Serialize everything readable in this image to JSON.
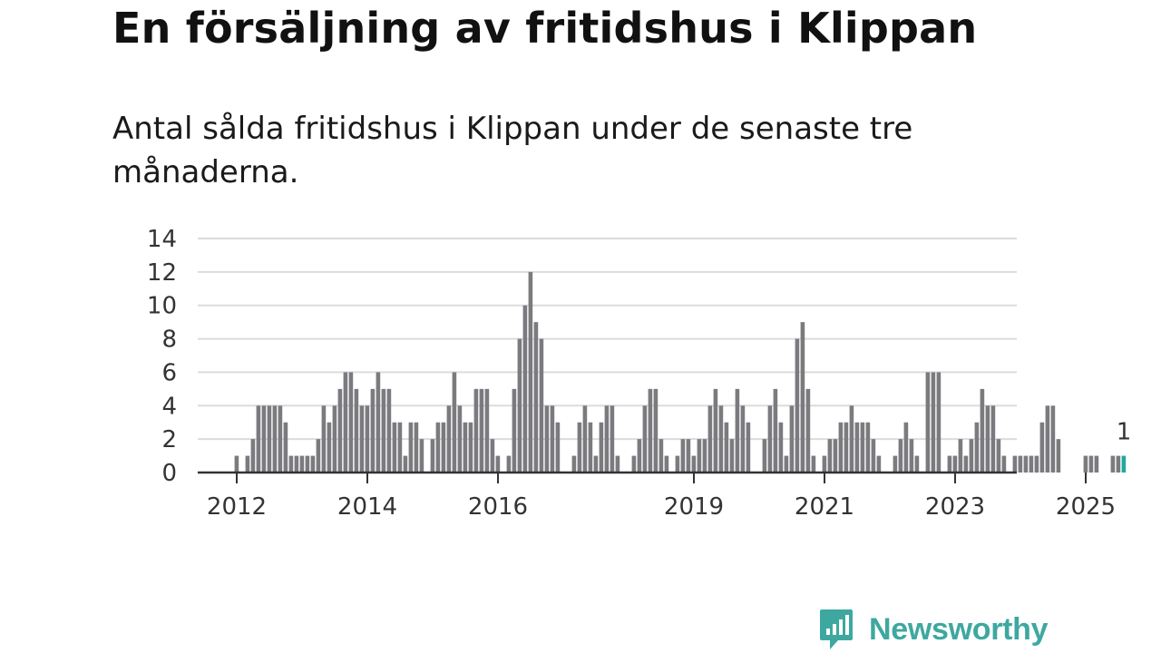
{
  "header": {
    "title": "En försäljning av fritidshus i Klippan",
    "subtitle": "Antal sålda fritidshus i Klippan under de senaste tre månaderna."
  },
  "chart_data": {
    "type": "bar",
    "title": "En försäljning av fritidshus i Klippan",
    "subtitle": "Antal sålda fritidshus i Klippan under de senaste tre månaderna.",
    "xlabel": "",
    "ylabel": "",
    "ylim": [
      0,
      14
    ],
    "yticks": [
      0,
      2,
      4,
      6,
      8,
      10,
      12,
      14
    ],
    "grid": true,
    "start_month": "2011-11",
    "x_tick_labels": [
      {
        "label": "2012",
        "month_index": 1
      },
      {
        "label": "2014",
        "month_index": 25
      },
      {
        "label": "2016",
        "month_index": 49
      },
      {
        "label": "2019",
        "month_index": 85
      },
      {
        "label": "2021",
        "month_index": 109
      },
      {
        "label": "2023",
        "month_index": 133
      },
      {
        "label": "2025",
        "month_index": 157
      }
    ],
    "values": [
      0,
      1,
      0,
      1,
      2,
      4,
      4,
      4,
      4,
      4,
      3,
      1,
      1,
      1,
      1,
      1,
      2,
      4,
      3,
      4,
      5,
      6,
      6,
      5,
      4,
      4,
      5,
      6,
      5,
      5,
      3,
      3,
      1,
      3,
      3,
      2,
      0,
      2,
      3,
      3,
      4,
      6,
      4,
      3,
      3,
      5,
      5,
      5,
      2,
      1,
      0,
      1,
      5,
      8,
      10,
      12,
      9,
      8,
      4,
      4,
      3,
      0,
      0,
      1,
      3,
      4,
      3,
      1,
      3,
      4,
      4,
      1,
      0,
      0,
      1,
      2,
      4,
      5,
      5,
      2,
      1,
      0,
      1,
      2,
      2,
      1,
      2,
      2,
      4,
      5,
      4,
      3,
      2,
      5,
      4,
      3,
      0,
      0,
      2,
      4,
      5,
      3,
      1,
      4,
      8,
      9,
      5,
      1,
      0,
      1,
      2,
      2,
      3,
      3,
      4,
      3,
      3,
      3,
      2,
      1,
      0,
      0,
      1,
      2,
      3,
      2,
      1,
      0,
      6,
      6,
      6,
      0,
      1,
      1,
      2,
      1,
      2,
      3,
      5,
      4,
      4,
      2,
      1,
      0,
      1,
      1,
      1,
      1,
      1,
      3,
      4,
      4,
      2,
      0,
      0,
      0,
      0,
      1,
      1,
      1,
      0,
      0,
      1,
      1,
      1
    ],
    "highlight": {
      "label": "1",
      "value": 1,
      "color": "#1fa9a3"
    },
    "bar_color": "#7b7b7f"
  },
  "logo": {
    "text": "Newsworthy",
    "icon": "newsworthy-logo-icon",
    "color": "#3ea8a0"
  }
}
